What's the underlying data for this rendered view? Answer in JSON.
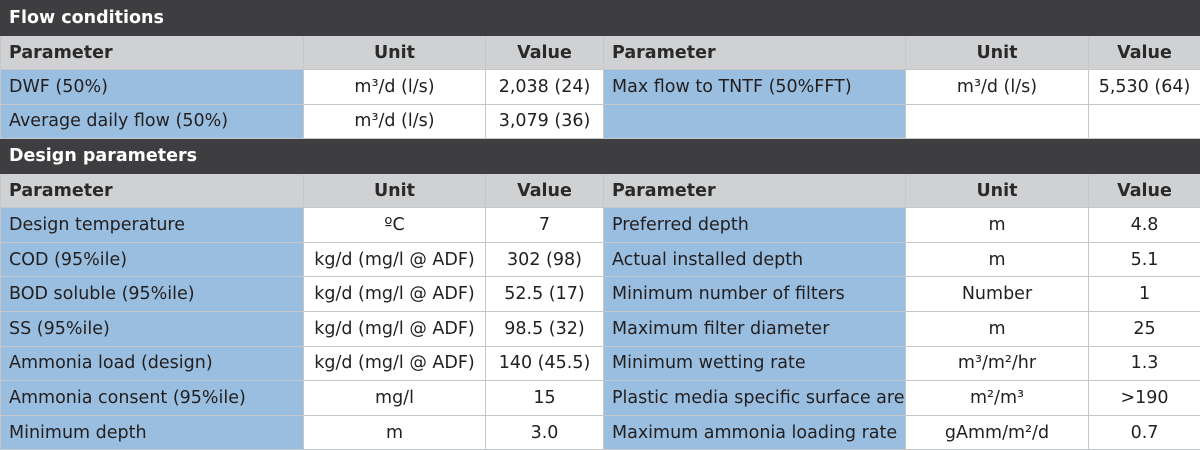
{
  "sections": [
    {
      "title": "Flow conditions",
      "headers": [
        "Parameter",
        "Unit",
        "Value",
        "Parameter",
        "Unit",
        "Value"
      ],
      "rows": [
        [
          "DWF (50%)",
          "m³/d (l/s)",
          "2,038 (24)",
          "Max flow to TNTF (50%FFT)",
          "m³/d (l/s)",
          "5,530 (64)"
        ],
        [
          "Average daily flow (50%)",
          "m³/d (l/s)",
          "3,079 (36)",
          "",
          "",
          ""
        ]
      ]
    },
    {
      "title": "Design parameters",
      "headers": [
        "Parameter",
        "Unit",
        "Value",
        "Parameter",
        "Unit",
        "Value"
      ],
      "rows": [
        [
          "Design temperature",
          "ºC",
          "7",
          "Preferred depth",
          "m",
          "4.8"
        ],
        [
          "COD (95%ile)",
          "kg/d (mg/l @ ADF)",
          "302 (98)",
          "Actual installed depth",
          "m",
          "5.1"
        ],
        [
          "BOD soluble (95%ile)",
          "kg/d (mg/l @ ADF)",
          "52.5 (17)",
          "Minimum number of filters",
          "Number",
          "1"
        ],
        [
          "SS (95%ile)",
          "kg/d (mg/l @ ADF)",
          "98.5 (32)",
          "Maximum filter diameter",
          "m",
          "25"
        ],
        [
          "Ammonia load (design)",
          "kg/d (mg/l @ ADF)",
          "140 (45.5)",
          "Minimum wetting rate",
          "m³/m²/hr",
          "1.3"
        ],
        [
          "Ammonia consent (95%ile)",
          "mg/l",
          "15",
          "Plastic media specific surface area",
          "m²/m³",
          ">190"
        ],
        [
          "Minimum depth",
          "m",
          "3.0",
          "Maximum ammonia loading rate",
          "gAmm/m²/d",
          "0.7"
        ]
      ]
    }
  ]
}
